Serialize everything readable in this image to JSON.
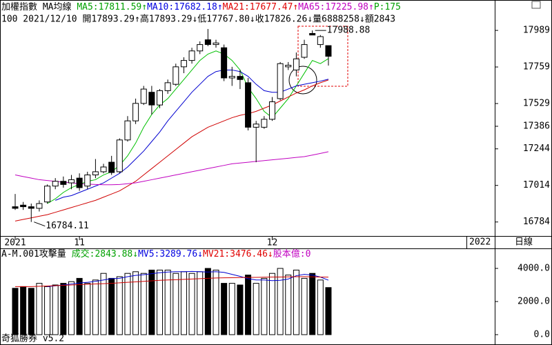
{
  "chart_data": [
    {
      "type": "candlestick",
      "title": "加權指數",
      "subtitle": "MA均線",
      "header": [
        {
          "text": "MA5:17811.59↑",
          "color": "#00a000"
        },
        {
          "text": "MA10:17682.18↑",
          "color": "#0000e0"
        },
        {
          "text": "MA21:17677.47↑",
          "color": "#e00000"
        },
        {
          "text": "MA65:17225.98↑",
          "color": "#c000c0"
        },
        {
          "text": "P:175",
          "color": "#00a000"
        }
      ],
      "info": "100 2021/12/10 開17893.29↑高17893.29↓低17767.80↓收17826.26↓量6888258↓額2843",
      "categories": [
        "2021",
        null,
        null,
        null,
        null,
        null,
        null,
        null,
        "11",
        null,
        null,
        null,
        null,
        null,
        null,
        null,
        null,
        null,
        null,
        null,
        null,
        null,
        null,
        null,
        null,
        null,
        null,
        null,
        null,
        null,
        null,
        null,
        "12",
        null,
        null,
        null,
        null,
        null,
        null,
        null
      ],
      "axis_end_label": "2022",
      "period": "日線",
      "open": [
        16880,
        16890,
        16880,
        16870,
        16910,
        17010,
        17040,
        17030,
        17060,
        17010,
        17080,
        17100,
        17160,
        17100,
        17300,
        17420,
        17530,
        17600,
        17520,
        17610,
        17650,
        17760,
        17800,
        17860,
        17930,
        17900,
        17880,
        17690,
        17700,
        17660,
        17380,
        17380,
        17430,
        17560,
        17760,
        17740,
        17820,
        17970,
        17900,
        17893.29
      ],
      "high": [
        16960,
        16910,
        16900,
        16920,
        17020,
        17060,
        17070,
        17080,
        17090,
        17100,
        17180,
        17150,
        17200,
        17310,
        17450,
        17560,
        17640,
        17640,
        17620,
        17680,
        17780,
        17820,
        17880,
        17920,
        17998,
        17930,
        17900,
        17760,
        17740,
        17690,
        17420,
        17450,
        17570,
        17790,
        17790,
        17850,
        17930,
        17988.88,
        17960,
        17893.29
      ],
      "low": [
        16860,
        16860,
        16784.11,
        16850,
        16900,
        16990,
        17000,
        16990,
        16980,
        16990,
        17060,
        17090,
        17080,
        17090,
        17290,
        17400,
        17520,
        17460,
        17500,
        17590,
        17640,
        17720,
        17780,
        17840,
        17890,
        17880,
        17670,
        17640,
        17620,
        17360,
        17160,
        17370,
        17420,
        17550,
        17740,
        17700,
        17810,
        17960,
        17880,
        17767.8
      ],
      "close": [
        16870,
        16880,
        16870,
        16900,
        17010,
        17040,
        17020,
        17050,
        17000,
        17080,
        17100,
        17130,
        17095,
        17300,
        17420,
        17530,
        17620,
        17520,
        17610,
        17660,
        17760,
        17800,
        17860,
        17900,
        17900,
        17910,
        17690,
        17700,
        17680,
        17380,
        17400,
        17430,
        17540,
        17780,
        17770,
        17810,
        17900,
        17960,
        17950,
        17826.26
      ],
      "series": [
        {
          "name": "MA5",
          "color": "#00c000",
          "values": [
            null,
            null,
            null,
            null,
            16900,
            16930,
            16970,
            17000,
            17020,
            17040,
            17050,
            17080,
            17100,
            17140,
            17200,
            17280,
            17380,
            17460,
            17520,
            17560,
            17620,
            17680,
            17740,
            17800,
            17840,
            17860,
            17840,
            17800,
            17740,
            17630,
            17560,
            17480,
            17440,
            17500,
            17560,
            17640,
            17720,
            17800,
            17780,
            17811.59
          ]
        },
        {
          "name": "MA10",
          "color": "#0000d0",
          "values": [
            null,
            null,
            null,
            null,
            null,
            16920,
            16940,
            16950,
            16970,
            16990,
            17010,
            17030,
            17060,
            17090,
            17130,
            17180,
            17230,
            17290,
            17350,
            17420,
            17480,
            17540,
            17600,
            17650,
            17700,
            17730,
            17740,
            17740,
            17730,
            17700,
            17650,
            17610,
            17600,
            17600,
            17620,
            17640,
            17650,
            17660,
            17670,
            17682.18
          ]
        },
        {
          "name": "MA21",
          "color": "#d00000",
          "values": [
            16790,
            16800,
            16810,
            16820,
            16830,
            16845,
            16860,
            16875,
            16890,
            16905,
            16920,
            16940,
            16960,
            16980,
            17010,
            17040,
            17080,
            17120,
            17160,
            17200,
            17240,
            17280,
            17320,
            17350,
            17380,
            17400,
            17420,
            17440,
            17455,
            17465,
            17480,
            17500,
            17520,
            17545,
            17570,
            17595,
            17615,
            17640,
            17660,
            17677.47
          ]
        },
        {
          "name": "MA65",
          "color": "#c000c0",
          "values": [
            17080,
            17070,
            17060,
            17050,
            17045,
            17040,
            17035,
            17030,
            17025,
            17022,
            17020,
            17018,
            17018,
            17020,
            17025,
            17030,
            17040,
            17050,
            17060,
            17070,
            17080,
            17090,
            17100,
            17110,
            17120,
            17130,
            17140,
            17150,
            17155,
            17160,
            17165,
            17170,
            17175,
            17180,
            17185,
            17190,
            17195,
            17205,
            17215,
            17225.98
          ]
        }
      ],
      "annotations": [
        {
          "index": 37,
          "value": 17988.88
        },
        {
          "index": 2,
          "value": 16784.11
        }
      ],
      "ylim": [
        16696,
        18024
      ],
      "yticks": [
        16784,
        17014,
        17244,
        17386,
        17529,
        17759,
        17989
      ]
    },
    {
      "type": "bar",
      "title": "A-M.001攻擊量",
      "header": [
        {
          "text": "成交:2843.88↓",
          "color": "#00a000"
        },
        {
          "text": "MV5:3289.76↓",
          "color": "#0000e0"
        },
        {
          "text": "MV21:3476.46↓",
          "color": "#e00000"
        },
        {
          "text": "股本億:0",
          "color": "#c000c0"
        }
      ],
      "values": [
        2800,
        2900,
        2800,
        3100,
        2900,
        3000,
        3100,
        3200,
        3400,
        3100,
        3300,
        3700,
        3400,
        3500,
        3700,
        3800,
        3700,
        3900,
        3900,
        3900,
        3700,
        3800,
        3700,
        3800,
        4000,
        3900,
        3100,
        3100,
        3000,
        3600,
        3100,
        3400,
        3700,
        4000,
        3600,
        3900,
        3400,
        3700,
        3300,
        2843.88
      ],
      "series": [
        {
          "name": "MV5",
          "color": "#0000d0",
          "values": [
            null,
            null,
            null,
            null,
            2900,
            2950,
            3000,
            3060,
            3120,
            3160,
            3220,
            3300,
            3380,
            3400,
            3500,
            3580,
            3620,
            3680,
            3740,
            3780,
            3800,
            3800,
            3820,
            3800,
            3780,
            3800,
            3760,
            3640,
            3520,
            3380,
            3300,
            3300,
            3260,
            3280,
            3360,
            3560,
            3640,
            3600,
            3480,
            3289.76
          ]
        },
        {
          "name": "MV21",
          "color": "#d00000",
          "values": [
            2900,
            2900,
            2900,
            2920,
            2940,
            2960,
            2980,
            3000,
            3020,
            3040,
            3060,
            3080,
            3100,
            3130,
            3160,
            3190,
            3220,
            3250,
            3280,
            3300,
            3320,
            3340,
            3360,
            3380,
            3400,
            3420,
            3430,
            3440,
            3450,
            3460,
            3460,
            3470,
            3480,
            3480,
            3490,
            3500,
            3500,
            3490,
            3480,
            3476.46
          ]
        }
      ],
      "ylim": [
        0,
        5125
      ],
      "yticks": [
        {
          "value": 0,
          "label": "0.0"
        },
        {
          "value": 2000,
          "label": "2000.0"
        },
        {
          "value": 4000,
          "label": "4000.0"
        }
      ],
      "footer": "奇狐勝券 v5.2"
    }
  ]
}
